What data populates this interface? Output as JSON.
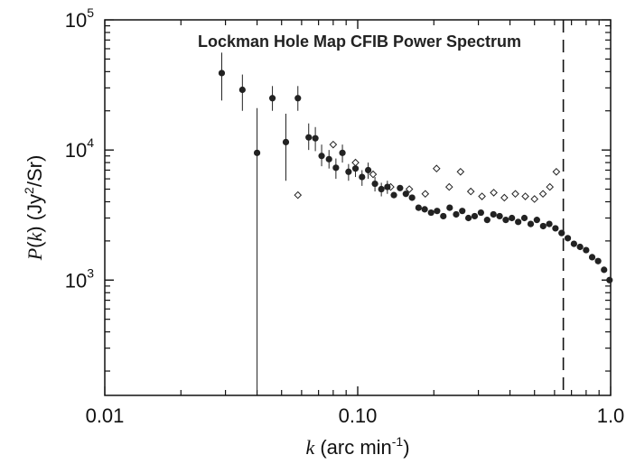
{
  "chart_data": {
    "type": "scatter",
    "title": "Lockman Hole Map CFIB Power Spectrum",
    "xlabel": "k (arc min⁻¹)",
    "ylabel": "P(k) (Jy²/Sr)",
    "xscale": "log",
    "yscale": "log",
    "xlim": [
      0.01,
      1.0
    ],
    "ylim": [
      130,
      100000
    ],
    "x_tick_labels": [
      "0.01",
      "0.10",
      "1.0"
    ],
    "y_tick_labels": [
      {
        "base": "10",
        "exp": "3"
      },
      {
        "base": "10",
        "exp": "4"
      },
      {
        "base": "10",
        "exp": "5"
      }
    ],
    "grid": false,
    "vertical_reference_line": {
      "x": 0.65,
      "style": "dashed"
    },
    "series": [
      {
        "marker": "filled-circle",
        "color": "#222222",
        "points": [
          {
            "x": 0.029,
            "y": 39000,
            "ylo": 24000,
            "yhi": 56000
          },
          {
            "x": 0.035,
            "y": 29000,
            "ylo": 20000,
            "yhi": 38000
          },
          {
            "x": 0.04,
            "y": 9500,
            "ylo": 140,
            "yhi": 21000
          },
          {
            "x": 0.046,
            "y": 25000,
            "ylo": 20000,
            "yhi": 31000
          },
          {
            "x": 0.052,
            "y": 11500,
            "ylo": 5800,
            "yhi": 19000
          },
          {
            "x": 0.058,
            "y": 25000,
            "ylo": 20000,
            "yhi": 31000
          },
          {
            "x": 0.064,
            "y": 12500,
            "ylo": 10000,
            "yhi": 16000
          },
          {
            "x": 0.068,
            "y": 12300,
            "ylo": 9800,
            "yhi": 15000
          },
          {
            "x": 0.072,
            "y": 9000,
            "ylo": 7500,
            "yhi": 11000
          },
          {
            "x": 0.077,
            "y": 8500,
            "ylo": 7200,
            "yhi": 10000
          },
          {
            "x": 0.082,
            "y": 7300,
            "ylo": 6000,
            "yhi": 8600
          },
          {
            "x": 0.087,
            "y": 9500,
            "ylo": 8000,
            "yhi": 11000
          },
          {
            "x": 0.092,
            "y": 6800,
            "ylo": 5800,
            "yhi": 7800
          },
          {
            "x": 0.098,
            "y": 7200,
            "ylo": 6200,
            "yhi": 8200
          },
          {
            "x": 0.104,
            "y": 6200,
            "ylo": 5300,
            "yhi": 7000
          },
          {
            "x": 0.11,
            "y": 7000,
            "ylo": 6000,
            "yhi": 8000
          },
          {
            "x": 0.117,
            "y": 5500,
            "ylo": 4800,
            "yhi": 6200
          },
          {
            "x": 0.124,
            "y": 5000,
            "ylo": 4400,
            "yhi": 5600
          },
          {
            "x": 0.131,
            "y": 5200,
            "ylo": 4600,
            "yhi": 5800
          },
          {
            "x": 0.139,
            "y": 4500
          },
          {
            "x": 0.147,
            "y": 5100
          },
          {
            "x": 0.155,
            "y": 4600
          },
          {
            "x": 0.164,
            "y": 4300
          },
          {
            "x": 0.174,
            "y": 3600
          },
          {
            "x": 0.184,
            "y": 3500
          },
          {
            "x": 0.195,
            "y": 3300
          },
          {
            "x": 0.206,
            "y": 3400
          },
          {
            "x": 0.218,
            "y": 3100
          },
          {
            "x": 0.231,
            "y": 3600
          },
          {
            "x": 0.245,
            "y": 3200
          },
          {
            "x": 0.259,
            "y": 3400
          },
          {
            "x": 0.274,
            "y": 3000
          },
          {
            "x": 0.29,
            "y": 3100
          },
          {
            "x": 0.307,
            "y": 3300
          },
          {
            "x": 0.325,
            "y": 2900
          },
          {
            "x": 0.344,
            "y": 3200
          },
          {
            "x": 0.364,
            "y": 3100
          },
          {
            "x": 0.385,
            "y": 2900
          },
          {
            "x": 0.407,
            "y": 3000
          },
          {
            "x": 0.431,
            "y": 2800
          },
          {
            "x": 0.456,
            "y": 3000
          },
          {
            "x": 0.483,
            "y": 2700
          },
          {
            "x": 0.511,
            "y": 2900
          },
          {
            "x": 0.541,
            "y": 2600
          },
          {
            "x": 0.572,
            "y": 2700
          },
          {
            "x": 0.605,
            "y": 2500
          },
          {
            "x": 0.64,
            "y": 2300
          },
          {
            "x": 0.677,
            "y": 2100
          },
          {
            "x": 0.716,
            "y": 1900
          },
          {
            "x": 0.757,
            "y": 1800
          },
          {
            "x": 0.8,
            "y": 1700
          },
          {
            "x": 0.845,
            "y": 1500
          },
          {
            "x": 0.892,
            "y": 1400
          },
          {
            "x": 0.942,
            "y": 1200
          },
          {
            "x": 0.99,
            "y": 1000
          }
        ]
      },
      {
        "marker": "open-diamond",
        "color": "#222222",
        "points": [
          {
            "x": 0.058,
            "y": 4500
          },
          {
            "x": 0.08,
            "y": 11000
          },
          {
            "x": 0.098,
            "y": 8000
          },
          {
            "x": 0.115,
            "y": 6500
          },
          {
            "x": 0.135,
            "y": 5200
          },
          {
            "x": 0.16,
            "y": 5000
          },
          {
            "x": 0.185,
            "y": 4600
          },
          {
            "x": 0.205,
            "y": 7200
          },
          {
            "x": 0.23,
            "y": 5200
          },
          {
            "x": 0.255,
            "y": 6800
          },
          {
            "x": 0.28,
            "y": 4800
          },
          {
            "x": 0.31,
            "y": 4400
          },
          {
            "x": 0.345,
            "y": 4700
          },
          {
            "x": 0.38,
            "y": 4300
          },
          {
            "x": 0.42,
            "y": 4600
          },
          {
            "x": 0.46,
            "y": 4400
          },
          {
            "x": 0.5,
            "y": 4200
          },
          {
            "x": 0.54,
            "y": 4600
          },
          {
            "x": 0.575,
            "y": 5200
          },
          {
            "x": 0.61,
            "y": 6800
          }
        ]
      }
    ]
  }
}
